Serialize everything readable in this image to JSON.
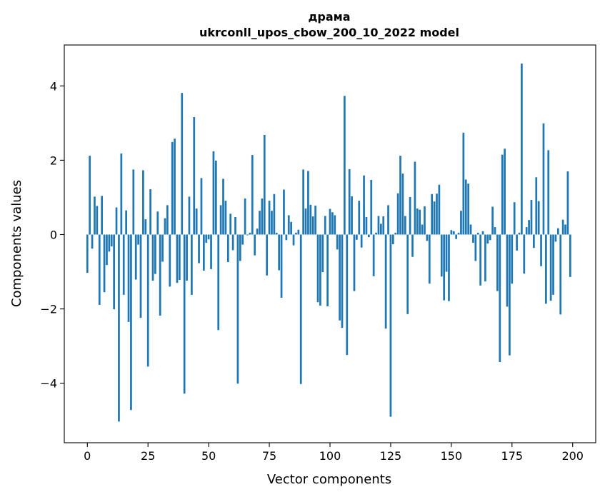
{
  "chart_data": {
    "type": "bar",
    "title": "драма",
    "subtitle": "ukrconll_upos_cbow_200_10_2022 model",
    "xlabel": "Vector components",
    "ylabel": "Components values",
    "xlim": [
      -9.5,
      209.5
    ],
    "ylim": [
      -5.6,
      5.1
    ],
    "xticks": [
      0,
      25,
      50,
      75,
      100,
      125,
      150,
      175,
      200
    ],
    "xtick_labels": [
      "0",
      "25",
      "50",
      "75",
      "100",
      "125",
      "150",
      "175",
      "200"
    ],
    "yticks": [
      -4,
      -2,
      0,
      2,
      4
    ],
    "ytick_labels": [
      "−4",
      "−2",
      "0",
      "2",
      "4"
    ],
    "grid": false,
    "bar_color": "#1f77b4",
    "x": [
      0,
      1,
      2,
      3,
      4,
      5,
      6,
      7,
      8,
      9,
      10,
      11,
      12,
      13,
      14,
      15,
      16,
      17,
      18,
      19,
      20,
      21,
      22,
      23,
      24,
      25,
      26,
      27,
      28,
      29,
      30,
      31,
      32,
      33,
      34,
      35,
      36,
      37,
      38,
      39,
      40,
      41,
      42,
      43,
      44,
      45,
      46,
      47,
      48,
      49,
      50,
      51,
      52,
      53,
      54,
      55,
      56,
      57,
      58,
      59,
      60,
      61,
      62,
      63,
      64,
      65,
      66,
      67,
      68,
      69,
      70,
      71,
      72,
      73,
      74,
      75,
      76,
      77,
      78,
      79,
      80,
      81,
      82,
      83,
      84,
      85,
      86,
      87,
      88,
      89,
      90,
      91,
      92,
      93,
      94,
      95,
      96,
      97,
      98,
      99,
      100,
      101,
      102,
      103,
      104,
      105,
      106,
      107,
      108,
      109,
      110,
      111,
      112,
      113,
      114,
      115,
      116,
      117,
      118,
      119,
      120,
      121,
      122,
      123,
      124,
      125,
      126,
      127,
      128,
      129,
      130,
      131,
      132,
      133,
      134,
      135,
      136,
      137,
      138,
      139,
      140,
      141,
      142,
      143,
      144,
      145,
      146,
      147,
      148,
      149,
      150,
      151,
      152,
      153,
      154,
      155,
      156,
      157,
      158,
      159,
      160,
      161,
      162,
      163,
      164,
      165,
      166,
      167,
      168,
      169,
      170,
      171,
      172,
      173,
      174,
      175,
      176,
      177,
      178,
      179,
      180,
      181,
      182,
      183,
      184,
      185,
      186,
      187,
      188,
      189,
      190,
      191,
      192,
      193,
      194,
      195,
      196,
      197,
      198,
      199
    ],
    "values": [
      -1.03,
      2.12,
      -0.38,
      1.02,
      0.77,
      -1.89,
      1.04,
      -1.55,
      -0.82,
      -0.46,
      -0.32,
      -2.01,
      0.73,
      -5.03,
      2.18,
      -1.62,
      0.65,
      -2.35,
      -4.72,
      1.75,
      -1.21,
      -0.27,
      -2.24,
      1.73,
      0.41,
      -3.55,
      1.22,
      -1.24,
      -1.06,
      0.62,
      -2.18,
      -0.73,
      0.44,
      0.79,
      -1.4,
      2.49,
      2.58,
      -1.3,
      -1.22,
      3.81,
      -4.28,
      -1.24,
      1.02,
      -1.62,
      3.16,
      0.7,
      -0.77,
      1.52,
      -0.97,
      -0.22,
      -0.13,
      -0.93,
      2.24,
      1.99,
      -2.57,
      0.79,
      1.5,
      0.91,
      -0.74,
      0.56,
      -0.42,
      0.47,
      -4.01,
      -0.71,
      -0.27,
      0.97,
      -0.02,
      0.05,
      2.14,
      -0.56,
      0.16,
      0.64,
      0.97,
      2.68,
      -1.1,
      0.91,
      0.64,
      1.09,
      0.05,
      -0.96,
      -1.7,
      1.21,
      -0.15,
      0.52,
      0.34,
      -0.29,
      0.05,
      0.13,
      -4.02,
      1.75,
      0.7,
      1.71,
      0.8,
      0.49,
      0.78,
      -1.82,
      -1.91,
      -1.01,
      0.5,
      -1.93,
      0.69,
      0.6,
      0.52,
      -0.4,
      -2.31,
      -2.51,
      3.73,
      -3.24,
      1.76,
      1.03,
      -1.52,
      -0.14,
      0.91,
      -0.35,
      1.59,
      0.47,
      -0.07,
      1.47,
      -1.12,
      0.05,
      0.5,
      0.29,
      0.49,
      -2.53,
      0.79,
      -4.9,
      -0.26,
      0.05,
      1.11,
      2.12,
      1.64,
      0.5,
      -2.14,
      1.01,
      -0.6,
      1.96,
      0.7,
      0.67,
      0.27,
      0.76,
      -0.17,
      -1.32,
      1.09,
      0.89,
      1.1,
      1.34,
      -1.13,
      -1.77,
      -1.0,
      -1.79,
      0.12,
      0.09,
      -0.12,
      0.05,
      0.64,
      2.74,
      1.48,
      1.37,
      0.27,
      -0.22,
      -0.71,
      0.05,
      -1.37,
      0.09,
      -1.26,
      -0.24,
      -0.15,
      0.75,
      0.2,
      -1.52,
      -3.43,
      2.15,
      2.31,
      -1.94,
      -3.25,
      -1.32,
      0.87,
      -0.43,
      0.05,
      4.6,
      -1.05,
      0.2,
      0.39,
      0.93,
      -0.36,
      1.54,
      0.9,
      -0.85,
      2.99,
      -1.86,
      2.27,
      -1.78,
      -1.62,
      -0.19,
      0.17,
      -2.15,
      0.4,
      0.27,
      1.7,
      -1.14
    ]
  }
}
